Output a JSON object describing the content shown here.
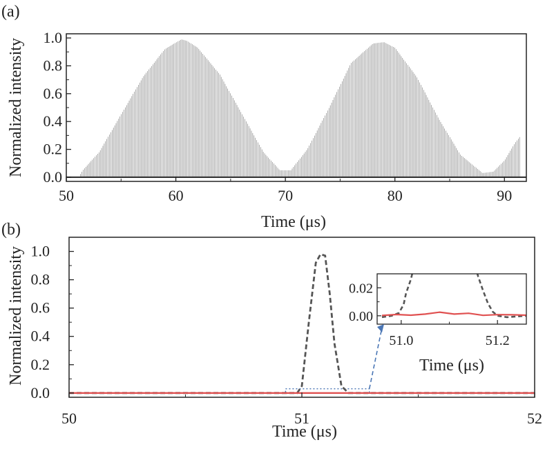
{
  "figure": {
    "background": "#ffffff"
  },
  "chart_data": [
    {
      "panel_label": "(a)",
      "type": "line",
      "xlabel": "Time (μs)",
      "ylabel": "Normalized intensity",
      "xlim": [
        50,
        92
      ],
      "ylim": [
        -0.03,
        1.03
      ],
      "xticks": [
        "50",
        "60",
        "70",
        "80",
        "90"
      ],
      "yticks": [
        "0.0",
        "0.2",
        "0.4",
        "0.6",
        "0.8",
        "1.0"
      ],
      "xtick_values": [
        50,
        60,
        70,
        80,
        90
      ],
      "ytick_values": [
        0,
        0.2,
        0.4,
        0.6,
        0.8,
        1.0
      ],
      "series": [
        {
          "color": "#333333",
          "pulse_spacing_us": 0.12,
          "envelope": {
            "x": [
              50,
              51.2,
              51.5,
              53,
              55,
              57,
              59,
              60.5,
              61,
              62,
              64,
              66,
              68,
              69.5,
              70.5,
              72,
              74,
              76,
              78,
              79,
              80,
              82,
              84,
              86,
              88,
              89,
              90,
              91,
              91.4,
              91.5,
              92
            ],
            "y": [
              0.01,
              0.01,
              0.05,
              0.18,
              0.45,
              0.72,
              0.92,
              0.99,
              0.98,
              0.93,
              0.74,
              0.46,
              0.18,
              0.05,
              0.05,
              0.2,
              0.5,
              0.82,
              0.96,
              0.97,
              0.93,
              0.72,
              0.42,
              0.16,
              0.03,
              0.04,
              0.12,
              0.25,
              0.29,
              0.01,
              0.01
            ]
          }
        }
      ]
    },
    {
      "panel_label": "(b)",
      "type": "line",
      "xlabel": "Time (μs)",
      "ylabel": "Normalized intensity",
      "xlim": [
        50,
        52
      ],
      "ylim": [
        -0.03,
        1.1
      ],
      "xticks": [
        "50",
        "51",
        "52"
      ],
      "yticks": [
        "0.0",
        "0.2",
        "0.4",
        "0.6",
        "0.8",
        "1.0"
      ],
      "xtick_values": [
        50,
        51,
        52
      ],
      "ytick_values": [
        0,
        0.2,
        0.4,
        0.6,
        0.8,
        1.0
      ],
      "series": [
        {
          "style": "dashed",
          "color": "#555555",
          "x": [
            50,
            50.98,
            51.0,
            51.03,
            51.06,
            51.08,
            51.1,
            51.12,
            51.14,
            51.17,
            51.2,
            52
          ],
          "y": [
            0,
            0,
            0.05,
            0.5,
            0.92,
            0.98,
            0.97,
            0.7,
            0.35,
            0.05,
            0,
            0
          ]
        },
        {
          "style": "solid",
          "color": "#e05050",
          "x": [
            50,
            52
          ],
          "y": [
            0,
            0
          ]
        }
      ],
      "zoom_box": {
        "x": [
          50.93,
          51.29
        ],
        "y": [
          0,
          0.03
        ],
        "color": "#4a76b5"
      },
      "inset": {
        "xlabel": "Time (μs)",
        "xlim": [
          50.95,
          51.26
        ],
        "ylim": [
          -0.006,
          0.03
        ],
        "xticks": [
          "51.0",
          "51.2"
        ],
        "yticks": [
          "0.00",
          "0.02"
        ],
        "xtick_values": [
          51.0,
          51.2
        ],
        "ytick_values": [
          0.0,
          0.02
        ],
        "series": [
          {
            "style": "dashed",
            "color": "#555555",
            "x": [
              50.96,
              50.98,
              50.995,
              51.005,
              51.01,
              51.02,
              51.03,
              51.15,
              51.16,
              51.17,
              51.18,
              51.19,
              51.2,
              51.22,
              51.26
            ],
            "y": [
              -0.001,
              0.0,
              0.002,
              0.008,
              0.016,
              0.026,
              0.04,
              0.04,
              0.028,
              0.018,
              0.009,
              0.003,
              0.0,
              -0.001,
              0.0
            ]
          },
          {
            "style": "solid",
            "color": "#e05050",
            "x": [
              50.96,
              50.99,
              51.02,
              51.05,
              51.08,
              51.11,
              51.14,
              51.17,
              51.2,
              51.23,
              51.26
            ],
            "y": [
              0.0002,
              0.0009,
              0.0004,
              0.0012,
              0.0026,
              0.0012,
              0.0018,
              0.0003,
              0.0008,
              0.0007,
              0.0004
            ]
          }
        ]
      }
    }
  ]
}
